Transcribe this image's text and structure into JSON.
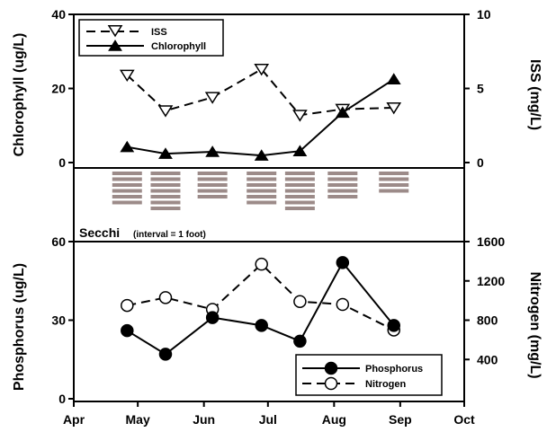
{
  "chart_data": [
    {
      "type": "line",
      "panel": "top",
      "ylabel": "Chlorophyll (ug/L)",
      "ylabel_right": "ISS (mg/L)",
      "ylim": [
        0,
        40
      ],
      "ylim_right": [
        0,
        10
      ],
      "yticks": [
        "0",
        "20",
        "40"
      ],
      "yticks_right": [
        "0",
        "5",
        "10"
      ],
      "legend_position": "top-left",
      "series": [
        {
          "name": "ISS",
          "axis": "right",
          "style": "dashed",
          "marker": "open-triangle-down",
          "x": [
            "2000-04-26",
            "2000-05-14",
            "2000-06-05",
            "2000-06-28",
            "2000-07-16",
            "2000-08-05",
            "2000-08-29"
          ],
          "values": [
            5.9,
            3.5,
            4.4,
            6.3,
            3.2,
            3.6,
            3.7
          ]
        },
        {
          "name": "Chlorophyll",
          "axis": "left",
          "style": "solid",
          "marker": "filled-triangle-up",
          "x": [
            "2000-04-26",
            "2000-05-14",
            "2000-06-05",
            "2000-06-28",
            "2000-07-16",
            "2000-08-05",
            "2000-08-29"
          ],
          "values": [
            4.2,
            2.4,
            2.9,
            1.9,
            3.1,
            13.5,
            22.5
          ]
        }
      ]
    },
    {
      "type": "bar",
      "panel": "middle",
      "title": "Secchi",
      "subtitle": "(interval = 1 foot)",
      "x": [
        "2000-04-26",
        "2000-05-14",
        "2000-06-05",
        "2000-06-28",
        "2000-07-16",
        "2000-08-05",
        "2000-08-29"
      ],
      "values": [
        6,
        7,
        5,
        6,
        7,
        5,
        4
      ],
      "units": "feet"
    },
    {
      "type": "line",
      "panel": "bottom",
      "ylabel": "Phosphorus (ug/L)",
      "ylabel_right": "Nitrogen (mg/L)",
      "ylim": [
        0,
        60
      ],
      "ylim_right": [
        0,
        1600
      ],
      "yticks": [
        "0",
        "30",
        "60"
      ],
      "yticks_right": [
        "400",
        "800",
        "1200",
        "1600"
      ],
      "xticks": [
        "Apr",
        "May",
        "Jun",
        "Jul",
        "Aug",
        "Sep",
        "Oct"
      ],
      "xlim": [
        "2000-04-01",
        "2000-10-01"
      ],
      "legend_position": "bottom-right",
      "series": [
        {
          "name": "Phosphorus",
          "axis": "left",
          "style": "solid",
          "marker": "filled-circle",
          "x": [
            "2000-04-26",
            "2000-05-14",
            "2000-06-05",
            "2000-06-28",
            "2000-07-16",
            "2000-08-05",
            "2000-08-29"
          ],
          "values": [
            26,
            17,
            31,
            28,
            22,
            52,
            28
          ]
        },
        {
          "name": "Nitrogen",
          "axis": "right",
          "style": "dashed",
          "marker": "open-circle",
          "x": [
            "2000-04-26",
            "2000-05-14",
            "2000-06-05",
            "2000-06-28",
            "2000-07-16",
            "2000-08-05",
            "2000-08-29"
          ],
          "values": [
            950,
            1030,
            910,
            1370,
            990,
            960,
            700
          ]
        }
      ]
    }
  ]
}
